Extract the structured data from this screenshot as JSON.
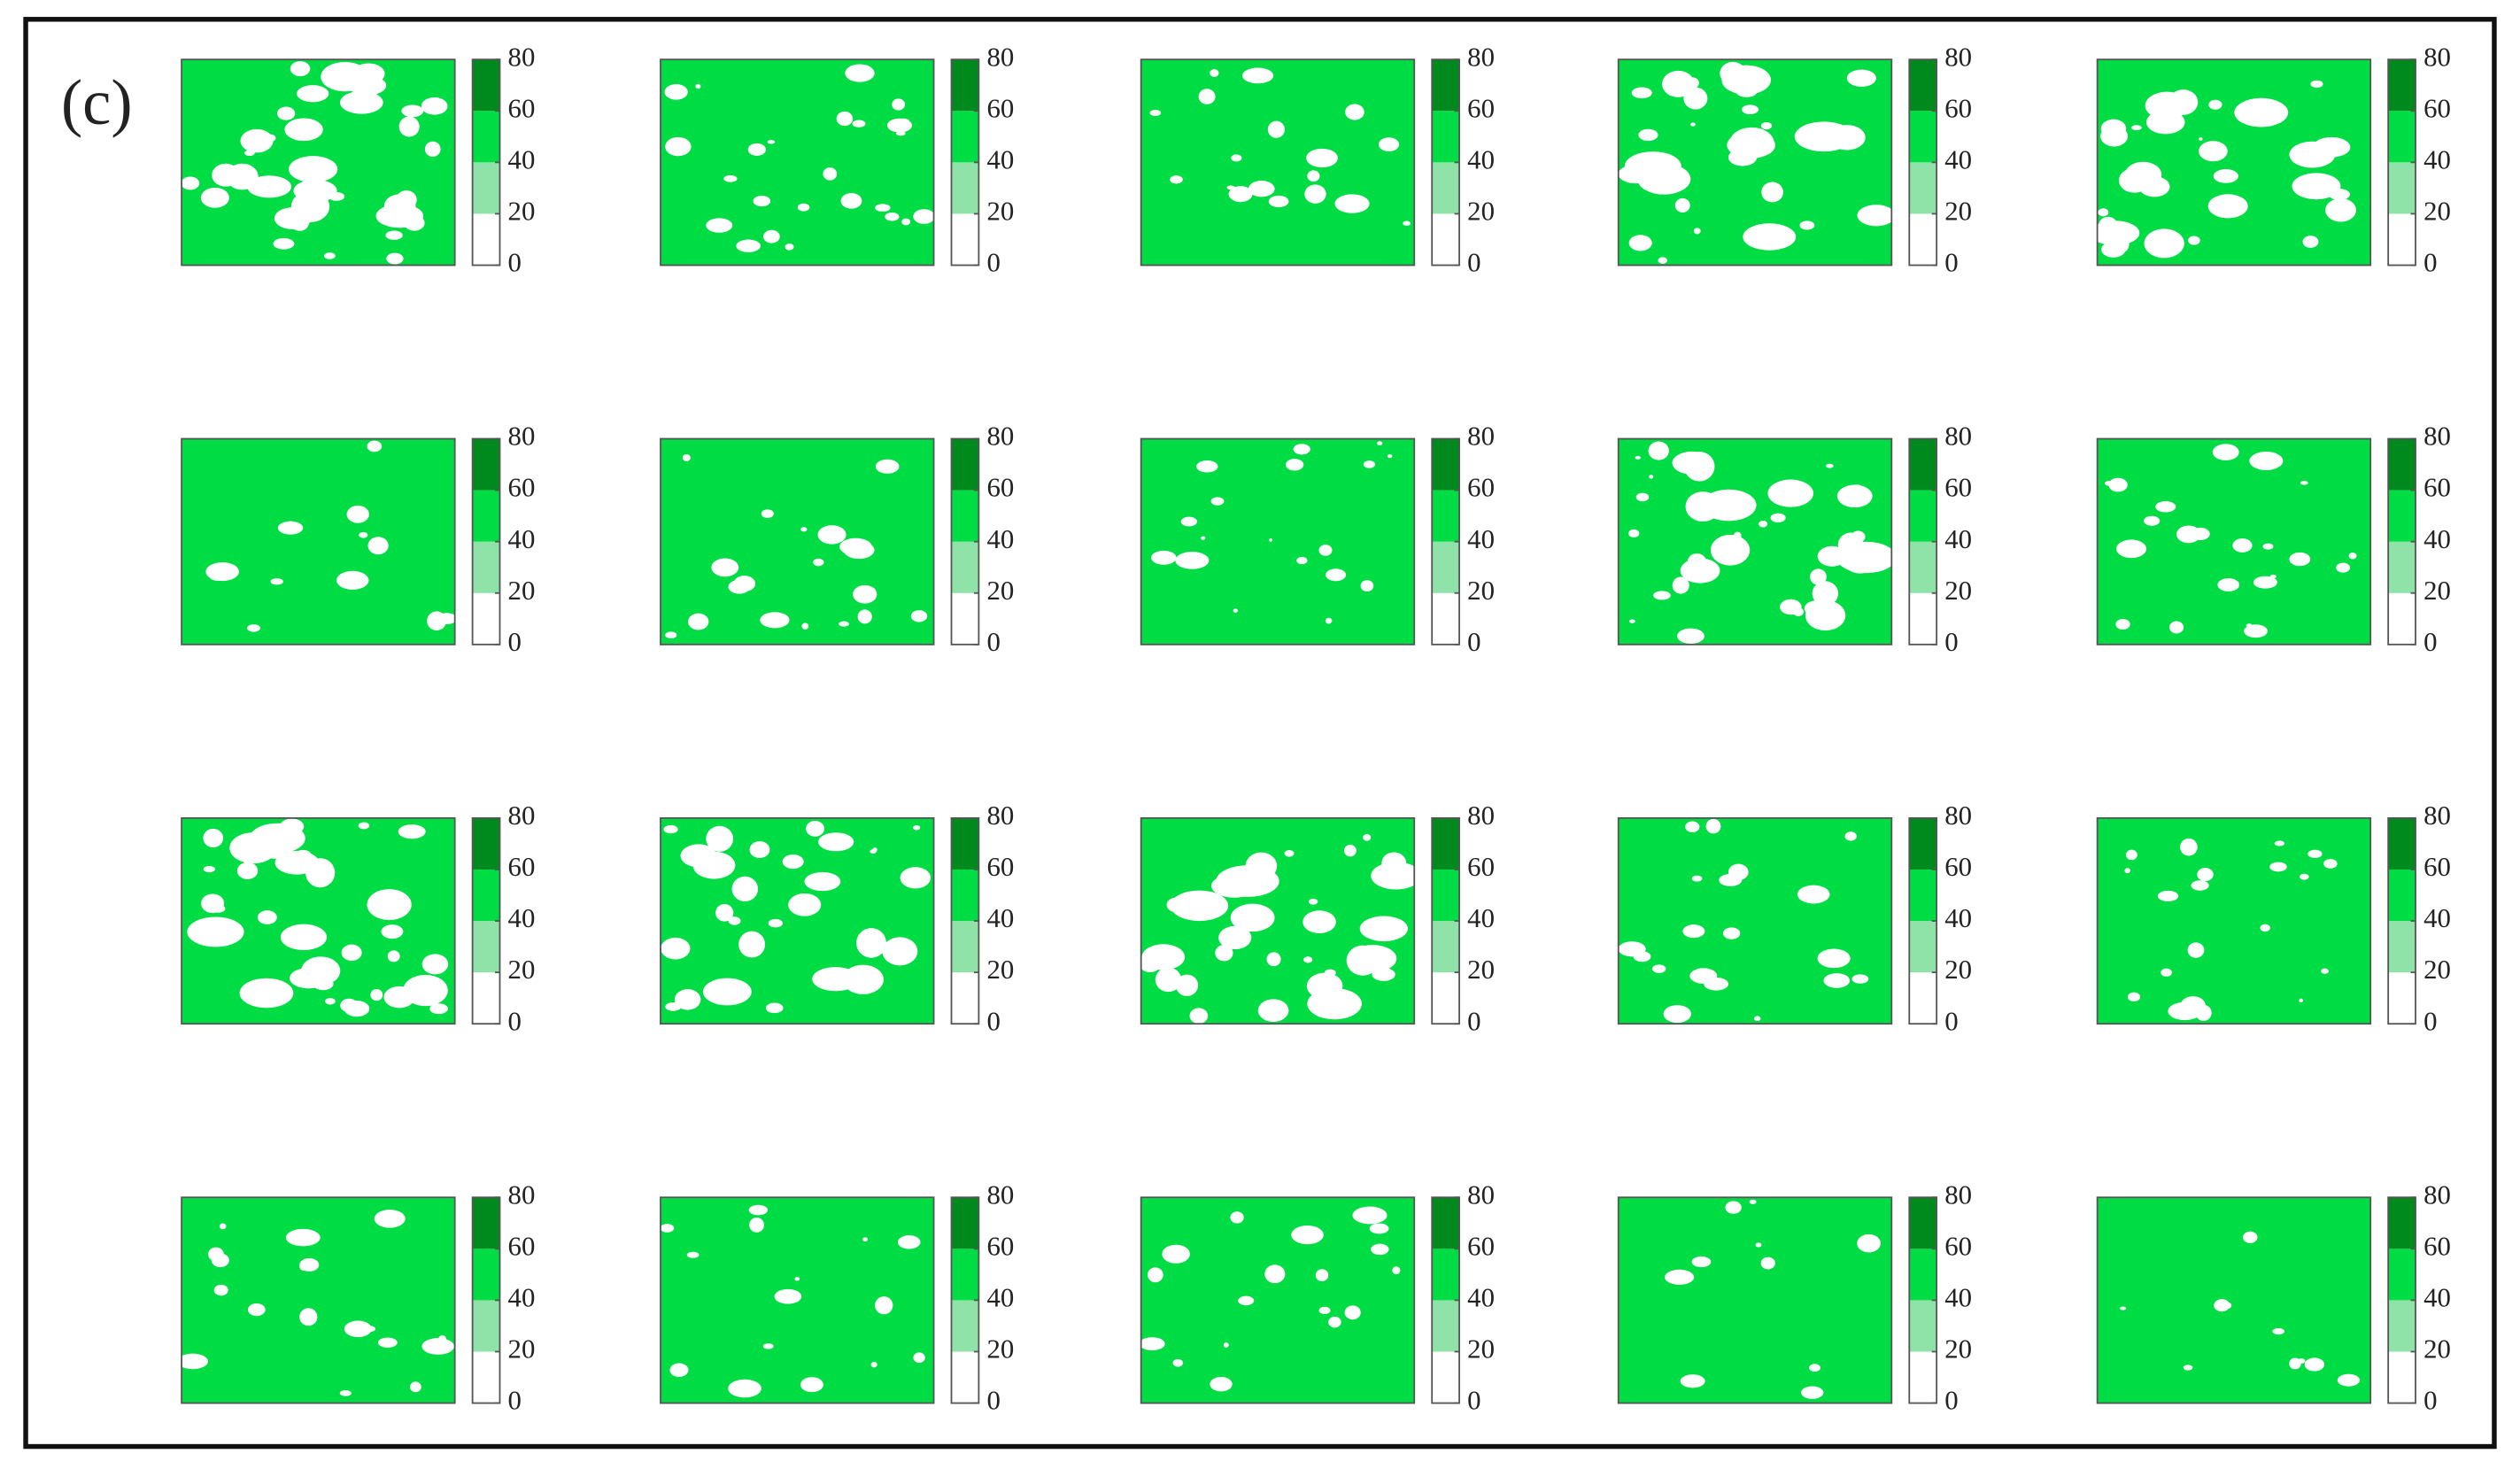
{
  "label": "(c)",
  "chart_data": {
    "type": "heatmap",
    "zlim": [
      0,
      80
    ],
    "zticks": [
      0,
      20,
      40,
      60,
      80
    ],
    "colors": [
      "#ffffff",
      "#8fe3a8",
      "#00dd44",
      "#008a1e"
    ],
    "field_color": "#00dd44"
  }
}
